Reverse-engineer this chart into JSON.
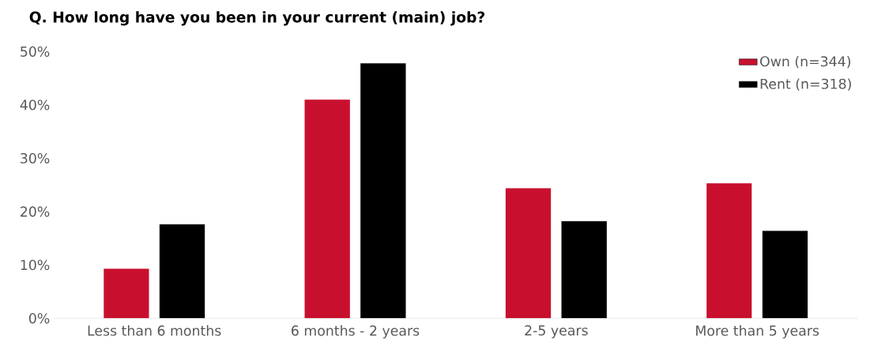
{
  "chart_data": {
    "type": "bar",
    "title": "Q. How long have you been in your current (main) job?",
    "categories": [
      "Less than 6 months",
      "6 months - 2 years",
      "2-5 years",
      "More than 5 years"
    ],
    "series": [
      {
        "name": "Own (n=344)",
        "color": "#c8102e",
        "values": [
          9.3,
          41.0,
          24.4,
          25.3
        ]
      },
      {
        "name": "Rent (n=318)",
        "color": "#000000",
        "values": [
          17.6,
          47.8,
          18.2,
          16.4
        ]
      }
    ],
    "ylim": [
      0,
      50
    ],
    "yticks": [
      {
        "value": 0,
        "label": "0%"
      },
      {
        "value": 10,
        "label": "10%"
      },
      {
        "value": 20,
        "label": "20%"
      },
      {
        "value": 30,
        "label": "30%"
      },
      {
        "value": 40,
        "label": "40%"
      },
      {
        "value": 50,
        "label": "50%"
      }
    ],
    "legend": "top right"
  }
}
